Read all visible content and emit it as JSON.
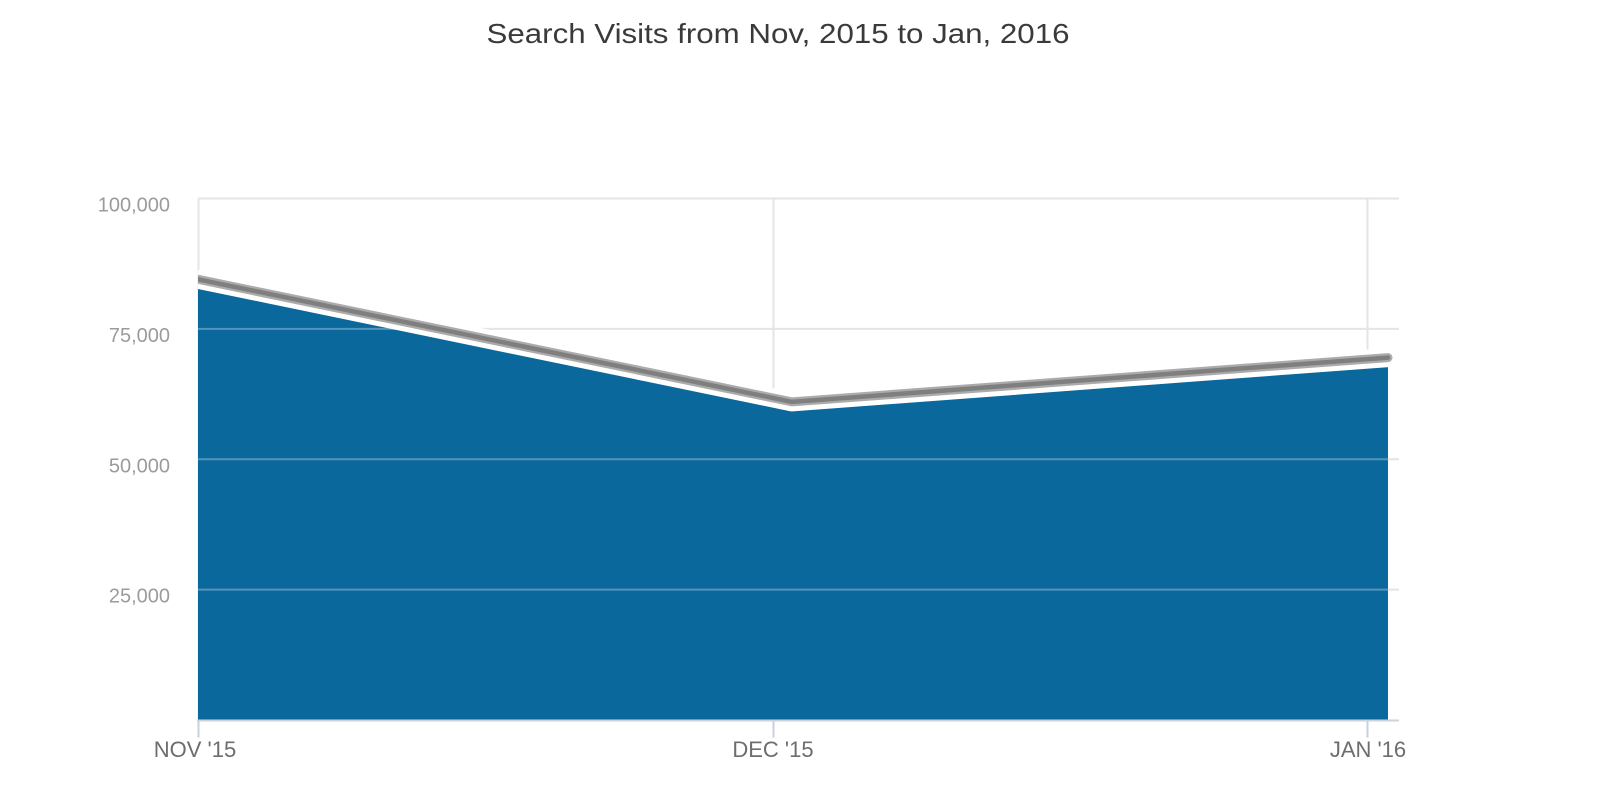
{
  "page": {
    "background": "#ffffff"
  },
  "chart_data": {
    "type": "area",
    "title": "Search Visits from Nov, 2015 to Jan, 2016",
    "categories": [
      "NOV '15",
      "DEC '15",
      "JAN '16"
    ],
    "series": [
      {
        "name": "Search Visits",
        "values": [
          84500,
          61000,
          69500
        ]
      }
    ],
    "xlabel": "",
    "ylabel": "",
    "ylim": [
      0,
      100000
    ],
    "yticks": [
      25000,
      50000,
      75000,
      100000
    ],
    "ytick_labels": [
      "25,000",
      "50,000",
      "75,000",
      "100,000"
    ],
    "grid": true,
    "legend": false,
    "layout_hints": {
      "title_position": "top-center",
      "y_labels_position": "left-outside",
      "x_labels_position": "bottom",
      "area_between_gridline_style": "lightened-line-through-fill"
    },
    "colors": {
      "area": "#0a689c",
      "line_core": "#7f7f7f",
      "line_outer": "#ababab",
      "line_halo": "#ffffff",
      "gridline": "#e4e4e4",
      "axis_line": "#cdd3da",
      "tick": "#c7d2e0",
      "title_text": "#3a3a3a",
      "y_label_text": "#9b9b9b",
      "x_label_text": "#6d6d6d"
    }
  }
}
